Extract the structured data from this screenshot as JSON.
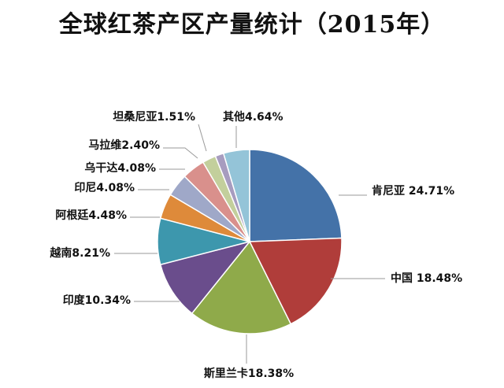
{
  "title": "全球红茶产区产量统计（2015年）",
  "chart_data": {
    "type": "pie",
    "title": "全球红茶产区产量统计（2015年）",
    "start": "12 o'clock",
    "direction": "clockwise",
    "legend": "none",
    "slices": [
      {
        "name": "肯尼亚",
        "value": 24.71,
        "label": "肯尼亚 24.71%",
        "color": "#4472a8"
      },
      {
        "name": "中国",
        "value": 18.48,
        "label": "中国 18.48%",
        "color": "#b03d3a"
      },
      {
        "name": "斯里兰卡",
        "value": 18.38,
        "label": "斯里兰卡18.38%",
        "color": "#8faa4a"
      },
      {
        "name": "印度",
        "value": 10.34,
        "label": "印度10.34%",
        "color": "#6a4d8c"
      },
      {
        "name": "越南",
        "value": 8.21,
        "label": "越南8.21%",
        "color": "#3d97ad"
      },
      {
        "name": "阿根廷",
        "value": 4.48,
        "label": "阿根廷4.48%",
        "color": "#de8a3a"
      },
      {
        "name": "印尼",
        "value": 4.08,
        "label": "印尼4.08%",
        "color": "#9fa8c8"
      },
      {
        "name": "乌干达",
        "value": 4.08,
        "label": "乌干达4.08%",
        "color": "#d9908c"
      },
      {
        "name": "马拉维",
        "value": 2.4,
        "label": "马拉维2.40%",
        "color": "#c3cf9c"
      },
      {
        "name": "坦桑尼亚",
        "value": 1.51,
        "label": "坦桑尼亚1.51%",
        "color": "#a79cbf"
      },
      {
        "name": "其他",
        "value": 4.64,
        "label": "其他4.64%",
        "color": "#94c4d8"
      }
    ]
  }
}
